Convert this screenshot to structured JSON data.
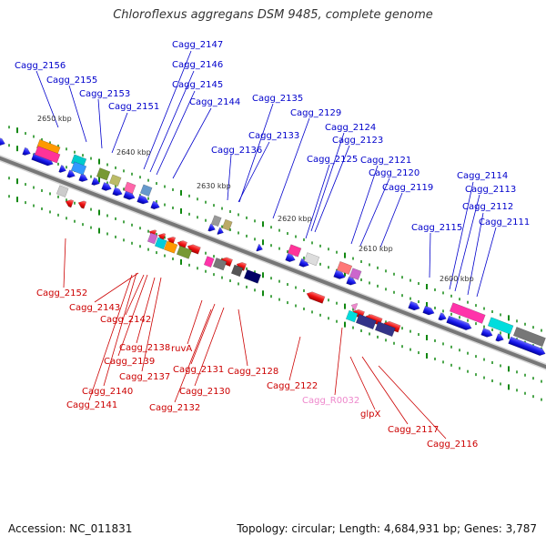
{
  "title": "Chloroflexus aggregans DSM 9485, complete genome",
  "footer": {
    "accession": "Accession: NC_011831",
    "summary": "Topology: circular; Length: 4,684,931 bp; Genes: 3,787"
  },
  "colors": {
    "top_labels": "#0000cc",
    "bottom_labels": "#cc0000",
    "rna_label": "#ee88cc",
    "backbone": "#888888",
    "forward_genes": "#1a1aee",
    "reverse_genes": "#ee1111",
    "ticks": "#118811"
  },
  "scale_labels": [
    "2650 kbp",
    "2640 kbp",
    "2630 kbp",
    "2620 kbp",
    "2610 kbp",
    "2600 kbp"
  ],
  "top_labels": [
    "Cagg_2156",
    "Cagg_2155",
    "Cagg_2153",
    "Cagg_2151",
    "Cagg_2147",
    "Cagg_2146",
    "Cagg_2145",
    "Cagg_2144",
    "Cagg_2135",
    "Cagg_2136",
    "Cagg_2133",
    "Cagg_2129",
    "Cagg_2124",
    "Cagg_2123",
    "Cagg_2125",
    "Cagg_2121",
    "Cagg_2120",
    "Cagg_2119",
    "Cagg_2114",
    "Cagg_2113",
    "Cagg_2112",
    "Cagg_2111",
    "Cagg_2115"
  ],
  "bottom_labels": [
    "Cagg_2152",
    "Cagg_2143",
    "Cagg_2142",
    "Cagg_2138",
    "Cagg_2139",
    "Cagg_2137",
    "Cagg_2140",
    "Cagg_2141",
    "ruvA",
    "Cagg_2131",
    "Cagg_2130",
    "Cagg_2132",
    "Cagg_2128",
    "Cagg_2122",
    "Cagg_R0032",
    "glpX",
    "Cagg_2117",
    "Cagg_2116"
  ]
}
